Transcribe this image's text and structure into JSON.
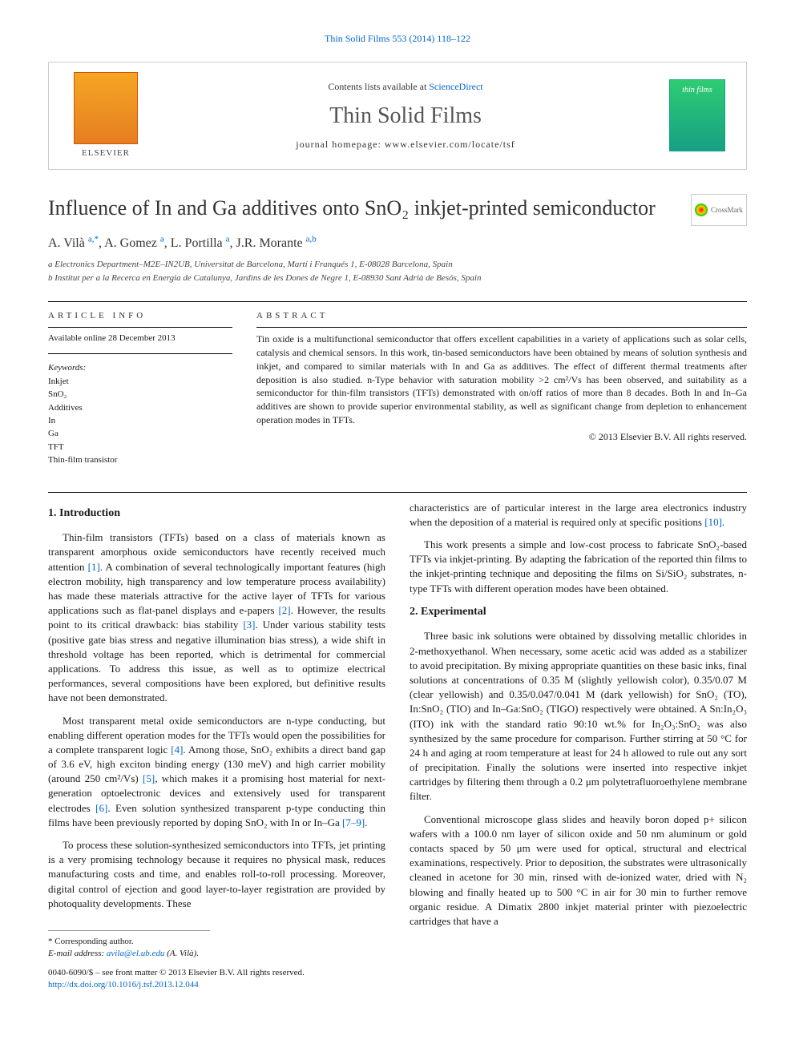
{
  "header_link": "Thin Solid Films 553 (2014) 118–122",
  "banner": {
    "elsevier_label": "ELSEVIER",
    "contents_prefix": "Contents lists available at ",
    "contents_link": "ScienceDirect",
    "journal_title": "Thin Solid Films",
    "homepage_label": "journal homepage: www.elsevier.com/locate/tsf",
    "cover_text": "thin films"
  },
  "crossmark_label": "CrossMark",
  "title": "Influence of In and Ga additives onto SnO₂ inkjet-printed semiconductor",
  "authors_html": "A. Vilà <sup>a,*</sup>, A. Gomez <sup>a</sup>, L. Portilla <sup>a</sup>, J.R. Morante <sup>a,b</sup>",
  "affiliations": {
    "a": "a  Electronics Department–M2E–IN2UB, Universitat de Barcelona, Martí i Franqués 1, E-08028 Barcelona, Spain",
    "b": "b  Institut per a la Recerca en Energia de Catalunya, Jardins de les Dones de Negre 1, E-08930 Sant Adrià de Besós, Spain"
  },
  "article_info": {
    "heading": "ARTICLE INFO",
    "available": "Available online 28 December 2013",
    "keywords_label": "Keywords:",
    "keywords": [
      "Inkjet",
      "SnO₂",
      "Additives",
      "In",
      "Ga",
      "TFT",
      "Thin-film transistor"
    ]
  },
  "abstract": {
    "heading": "ABSTRACT",
    "body": "Tin oxide is a multifunctional semiconductor that offers excellent capabilities in a variety of applications such as solar cells, catalysis and chemical sensors. In this work, tin-based semiconductors have been obtained by means of solution synthesis and inkjet, and compared to similar materials with In and Ga as additives. The effect of different thermal treatments after deposition is also studied. n-Type behavior with saturation mobility >2 cm²/Vs has been observed, and suitability as a semiconductor for thin-film transistors (TFTs) demonstrated with on/off ratios of more than 8 decades. Both In and In–Ga additives are shown to provide superior environmental stability, as well as significant change from depletion to enhancement operation modes in TFTs.",
    "copyright": "© 2013 Elsevier B.V. All rights reserved."
  },
  "sections": {
    "intro_heading": "1. Introduction",
    "intro_p1": "Thin-film transistors (TFTs) based on a class of materials known as transparent amorphous oxide semiconductors have recently received much attention [1]. A combination of several technologically important features (high electron mobility, high transparency and low temperature process availability) has made these materials attractive for the active layer of TFTs for various applications such as flat-panel displays and e-papers [2]. However, the results point to its critical drawback: bias stability [3]. Under various stability tests (positive gate bias stress and negative illumination bias stress), a wide shift in threshold voltage has been reported, which is detrimental for commercial applications. To address this issue, as well as to optimize electrical performances, several compositions have been explored, but definitive results have not been demonstrated.",
    "intro_p2": "Most transparent metal oxide semiconductors are n-type conducting, but enabling different operation modes for the TFTs would open the possibilities for a complete transparent logic [4]. Among those, SnO₂ exhibits a direct band gap of 3.6 eV, high exciton binding energy (130 meV) and high carrier mobility (around 250 cm²/Vs) [5], which makes it a promising host material for next-generation optoelectronic devices and extensively used for transparent electrodes [6]. Even solution synthesized transparent p-type conducting thin films have been previously reported by doping SnO₂ with In or In–Ga [7–9].",
    "intro_p3": "To process these solution-synthesized semiconductors into TFTs, jet printing is a very promising technology because it requires no physical mask, reduces manufacturing costs and time, and enables roll-to-roll processing. Moreover, digital control of ejection and good layer-to-layer registration are provided by photoquality developments. These",
    "intro_p4": "characteristics are of particular interest in the large area electronics industry when the deposition of a material is required only at specific positions [10].",
    "intro_p5": "This work presents a simple and low-cost process to fabricate SnO₂-based TFTs via inkjet-printing. By adapting the fabrication of the reported thin films to the inkjet-printing technique and depositing the films on Si/SiO₂ substrates, n-type TFTs with different operation modes have been obtained.",
    "exp_heading": "2. Experimental",
    "exp_p1": "Three basic ink solutions were obtained by dissolving metallic chlorides in 2-methoxyethanol. When necessary, some acetic acid was added as a stabilizer to avoid precipitation. By mixing appropriate quantities on these basic inks, final solutions at concentrations of 0.35 M (slightly yellowish color), 0.35/0.07 M (clear yellowish) and 0.35/0.047/0.041 M (dark yellowish) for SnO₂ (TO), In:SnO₂ (TIO) and In–Ga:SnO₂ (TIGO) respectively were obtained. A Sn:In₂O₃ (ITO) ink with the standard ratio 90:10 wt.% for In₂O₃:SnO₂ was also synthesized by the same procedure for comparison. Further stirring at 50 °C for 24 h and aging at room temperature at least for 24 h allowed to rule out any sort of precipitation. Finally the solutions were inserted into respective inkjet cartridges by filtering them through a 0.2 μm polytetrafluoroethylene membrane filter.",
    "exp_p2": "Conventional microscope glass slides and heavily boron doped p+ silicon wafers with a 100.0 nm layer of silicon oxide and 50 nm aluminum or gold contacts spaced by 50 μm were used for optical, structural and electrical examinations, respectively. Prior to deposition, the substrates were ultrasonically cleaned in acetone for 30 min, rinsed with de-ionized water, dried with N₂ blowing and finally heated up to 500 °C in air for 30 min to further remove organic residue. A Dimatix 2800 inkjet material printer with piezoelectric cartridges that have a"
  },
  "footer": {
    "corr_label": "* Corresponding author.",
    "email_label": "E-mail address: ",
    "email": "avila@el.ub.edu",
    "email_name": " (A. Vilà).",
    "front_matter": "0040-6090/$ – see front matter © 2013 Elsevier B.V. All rights reserved.",
    "doi": "http://dx.doi.org/10.1016/j.tsf.2013.12.044"
  },
  "colors": {
    "link": "#0066cc",
    "text": "#1a1a1a",
    "rule": "#000000",
    "border": "#cccccc"
  }
}
